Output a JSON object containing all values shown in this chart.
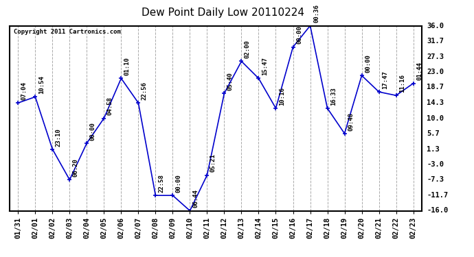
{
  "title": "Dew Point Daily Low 20110224",
  "copyright": "Copyright 2011 Cartronics.com",
  "x_labels": [
    "01/31",
    "02/01",
    "02/02",
    "02/03",
    "02/04",
    "02/05",
    "02/06",
    "02/07",
    "02/08",
    "02/09",
    "02/10",
    "02/11",
    "02/12",
    "02/13",
    "02/14",
    "02/15",
    "02/16",
    "02/17",
    "02/18",
    "02/19",
    "02/20",
    "02/21",
    "02/22",
    "02/23"
  ],
  "y_values": [
    14.3,
    16.0,
    1.3,
    -7.3,
    3.0,
    10.0,
    21.2,
    14.3,
    -11.7,
    -11.7,
    -16.0,
    -6.0,
    17.0,
    26.0,
    21.2,
    12.8,
    30.0,
    36.0,
    12.8,
    5.7,
    22.0,
    17.4,
    16.4,
    19.8
  ],
  "time_labels": [
    "07:04",
    "10:54",
    "23:10",
    "06:20",
    "00:00",
    "04:58",
    "01:10",
    "22:56",
    "22:58",
    "00:00",
    "06:44",
    "05:21",
    "05:40",
    "02:00",
    "15:47",
    "10:16",
    "00:00",
    "00:36",
    "16:33",
    "09:48",
    "00:00",
    "17:47",
    "11:16",
    "01:44"
  ],
  "ylim": [
    -16.0,
    36.0
  ],
  "yticks": [
    -16.0,
    -11.7,
    -7.3,
    -3.0,
    1.3,
    5.7,
    10.0,
    14.3,
    18.7,
    23.0,
    27.3,
    31.7,
    36.0
  ],
  "line_color": "#0000CC",
  "marker_color": "#0000CC",
  "bg_color": "#ffffff",
  "grid_color": "#aaaaaa",
  "title_fontsize": 11,
  "annot_fontsize": 6.5,
  "tick_fontsize": 7.5
}
